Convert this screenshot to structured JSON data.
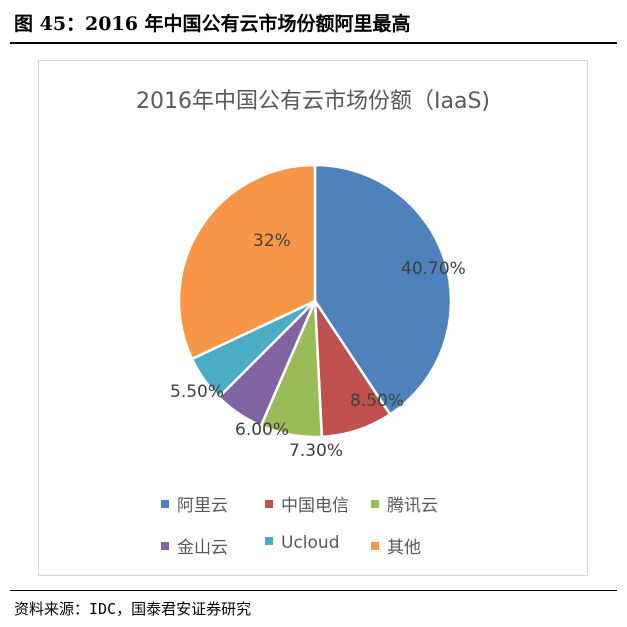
{
  "figure": {
    "title": "图 45：2016 年中国公有云市场份额阿里最高",
    "source": "资料来源：IDC，国泰君安证券研究"
  },
  "chart_data": {
    "type": "pie",
    "title": "2016年中国公有云市场份额（IaaS)",
    "legend_position": "bottom",
    "slices": [
      {
        "name": "阿里云",
        "value": 40.7,
        "label": "40.70%",
        "color": "#4f81bd"
      },
      {
        "name": "中国电信",
        "value": 8.5,
        "label": "8.50%",
        "color": "#c0504d"
      },
      {
        "name": "腾讯云",
        "value": 7.3,
        "label": "7.30%",
        "color": "#9bbb59"
      },
      {
        "name": "金山云",
        "value": 6.0,
        "label": "6.00%",
        "color": "#8064a2"
      },
      {
        "name": "Ucloud",
        "value": 5.5,
        "label": "5.50%",
        "color": "#4bacc6"
      },
      {
        "name": "其他",
        "value": 32,
        "label": "32%",
        "color": "#f79646"
      }
    ]
  }
}
